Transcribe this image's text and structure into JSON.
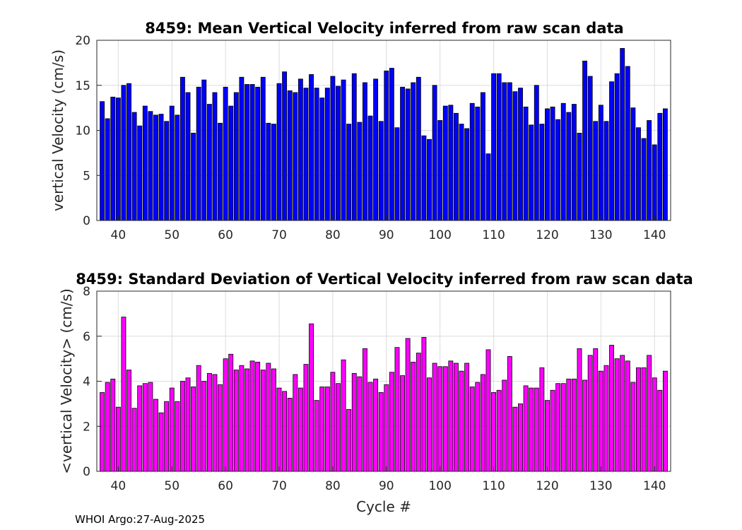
{
  "colors": {
    "top_bar": "#0000ff",
    "bottom_bar": "#ff00ff",
    "edge": "#000000",
    "grid": "#dcdcdc"
  },
  "footer_text": "WHOI Argo:27-Aug-2025",
  "chart_data": [
    {
      "type": "bar",
      "title": "8459: Mean Vertical Velocity inferred from raw scan data",
      "xlabel": "",
      "ylabel": "vertical Velocity (cm/s)",
      "xlim": [
        36,
        143
      ],
      "ylim": [
        0,
        20
      ],
      "xticks": [
        40,
        50,
        60,
        70,
        80,
        90,
        100,
        110,
        120,
        130,
        140
      ],
      "yticks": [
        0,
        5,
        10,
        15,
        20
      ],
      "grid": true,
      "x": [
        37,
        38,
        39,
        40,
        41,
        42,
        43,
        44,
        45,
        46,
        47,
        48,
        49,
        50,
        51,
        52,
        53,
        54,
        55,
        56,
        57,
        58,
        59,
        60,
        61,
        62,
        63,
        64,
        65,
        66,
        67,
        68,
        69,
        70,
        71,
        72,
        73,
        74,
        75,
        76,
        77,
        78,
        79,
        80,
        81,
        82,
        83,
        84,
        85,
        86,
        87,
        88,
        89,
        90,
        91,
        92,
        93,
        94,
        95,
        96,
        97,
        98,
        99,
        100,
        101,
        102,
        103,
        104,
        105,
        106,
        107,
        108,
        109,
        110,
        111,
        112,
        113,
        114,
        115,
        116,
        117,
        118,
        119,
        120,
        121,
        122,
        123,
        124,
        125,
        126,
        127,
        128,
        129,
        130,
        131,
        132,
        133,
        134,
        135,
        136,
        137,
        138,
        139,
        140,
        141,
        142
      ],
      "values": [
        13.2,
        11.3,
        13.7,
        13.6,
        15.0,
        15.2,
        12.0,
        10.5,
        12.7,
        12.1,
        11.7,
        11.8,
        11.0,
        12.7,
        11.7,
        15.9,
        14.2,
        9.7,
        14.8,
        15.6,
        12.9,
        14.2,
        10.8,
        14.8,
        12.7,
        14.2,
        15.9,
        15.1,
        15.1,
        14.8,
        15.9,
        10.8,
        10.7,
        15.2,
        16.5,
        14.4,
        14.2,
        15.7,
        14.7,
        16.2,
        14.7,
        13.6,
        14.7,
        16.0,
        14.9,
        15.6,
        10.7,
        16.3,
        10.9,
        15.3,
        11.6,
        15.7,
        11.0,
        16.6,
        16.9,
        10.3,
        14.8,
        14.6,
        15.3,
        15.9,
        9.4,
        9.0,
        15.0,
        11.1,
        12.7,
        12.8,
        11.9,
        10.7,
        10.2,
        13.0,
        12.6,
        14.2,
        7.4,
        16.3,
        16.3,
        15.3,
        15.3,
        14.3,
        14.7,
        12.6,
        10.6,
        15.0,
        10.7,
        12.4,
        12.6,
        11.2,
        13.0,
        12.0,
        12.9,
        9.7,
        17.7,
        16.0,
        11.0,
        12.8,
        11.0,
        15.4,
        16.3,
        19.1,
        17.1,
        12.5,
        10.3,
        9.1,
        11.1,
        8.4,
        11.9,
        12.4
      ]
    },
    {
      "type": "bar",
      "title": "8459: Standard Deviation of Vertical Velocity inferred from raw scan data",
      "xlabel": "Cycle #",
      "ylabel": "<vertical Velocity> (cm/s)",
      "xlim": [
        36,
        143
      ],
      "ylim": [
        0,
        8
      ],
      "xticks": [
        40,
        50,
        60,
        70,
        80,
        90,
        100,
        110,
        120,
        130,
        140
      ],
      "yticks": [
        0,
        2,
        4,
        6,
        8
      ],
      "grid": true,
      "x": [
        37,
        38,
        39,
        40,
        41,
        42,
        43,
        44,
        45,
        46,
        47,
        48,
        49,
        50,
        51,
        52,
        53,
        54,
        55,
        56,
        57,
        58,
        59,
        60,
        61,
        62,
        63,
        64,
        65,
        66,
        67,
        68,
        69,
        70,
        71,
        72,
        73,
        74,
        75,
        76,
        77,
        78,
        79,
        80,
        81,
        82,
        83,
        84,
        85,
        86,
        87,
        88,
        89,
        90,
        91,
        92,
        93,
        94,
        95,
        96,
        97,
        98,
        99,
        100,
        101,
        102,
        103,
        104,
        105,
        106,
        107,
        108,
        109,
        110,
        111,
        112,
        113,
        114,
        115,
        116,
        117,
        118,
        119,
        120,
        121,
        122,
        123,
        124,
        125,
        126,
        127,
        128,
        129,
        130,
        131,
        132,
        133,
        134,
        135,
        136,
        137,
        138,
        139,
        140,
        141,
        142
      ],
      "values": [
        3.5,
        3.95,
        4.1,
        2.85,
        6.85,
        4.5,
        2.8,
        3.8,
        3.9,
        3.95,
        3.2,
        2.6,
        3.1,
        3.7,
        3.1,
        4.0,
        4.15,
        3.75,
        4.7,
        4.0,
        4.35,
        4.3,
        3.85,
        5.0,
        5.2,
        4.5,
        4.7,
        4.55,
        4.9,
        4.85,
        4.5,
        4.8,
        4.55,
        3.7,
        3.55,
        3.25,
        4.3,
        3.7,
        4.75,
        6.55,
        3.15,
        3.75,
        3.75,
        4.4,
        3.9,
        4.95,
        2.75,
        4.35,
        4.2,
        5.45,
        3.95,
        4.1,
        3.5,
        3.85,
        4.4,
        5.5,
        4.25,
        5.9,
        4.85,
        5.25,
        5.95,
        4.15,
        4.8,
        4.65,
        4.65,
        4.9,
        4.8,
        4.45,
        4.8,
        3.75,
        3.95,
        4.3,
        5.4,
        3.5,
        3.6,
        4.05,
        5.1,
        2.85,
        3.0,
        3.8,
        3.7,
        3.7,
        4.6,
        3.15,
        3.6,
        3.9,
        3.9,
        4.1,
        4.1,
        5.45,
        4.05,
        5.15,
        5.45,
        4.45,
        4.7,
        5.6,
        5.0,
        5.15,
        4.9,
        3.95,
        4.6,
        4.6,
        5.15,
        4.15,
        3.6,
        4.45
      ]
    }
  ]
}
